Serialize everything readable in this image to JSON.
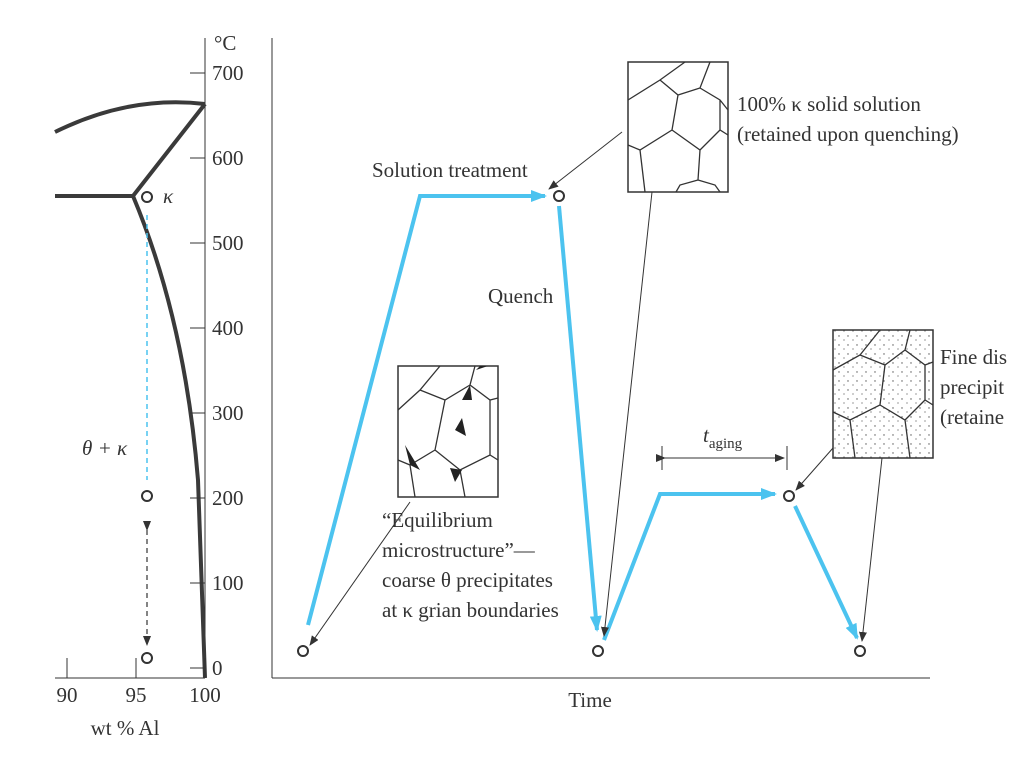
{
  "phase_diagram": {
    "temperature_unit": "°C",
    "temperature_ticks": [
      0,
      100,
      200,
      300,
      400,
      500,
      600,
      700
    ],
    "composition_ticks": [
      90,
      95,
      100
    ],
    "x_label": "wt % Al",
    "phase_labels": {
      "kappa": "κ",
      "theta_kappa": "θ + κ"
    }
  },
  "process": {
    "x_label": "Time",
    "solution_treatment": "Solution treatment",
    "quench": "Quench",
    "aging": {
      "t": "t",
      "sub": "aging"
    },
    "solid_solution_note": [
      "100% κ solid solution",
      "(retained upon quenching)"
    ],
    "equilibrium_note": [
      "“Equilibrium",
      "microstructure”—",
      "coarse θ precipitates",
      "at κ grian boundaries"
    ],
    "fine_note": [
      "Fine dis",
      "precipit",
      "(retaine"
    ]
  }
}
